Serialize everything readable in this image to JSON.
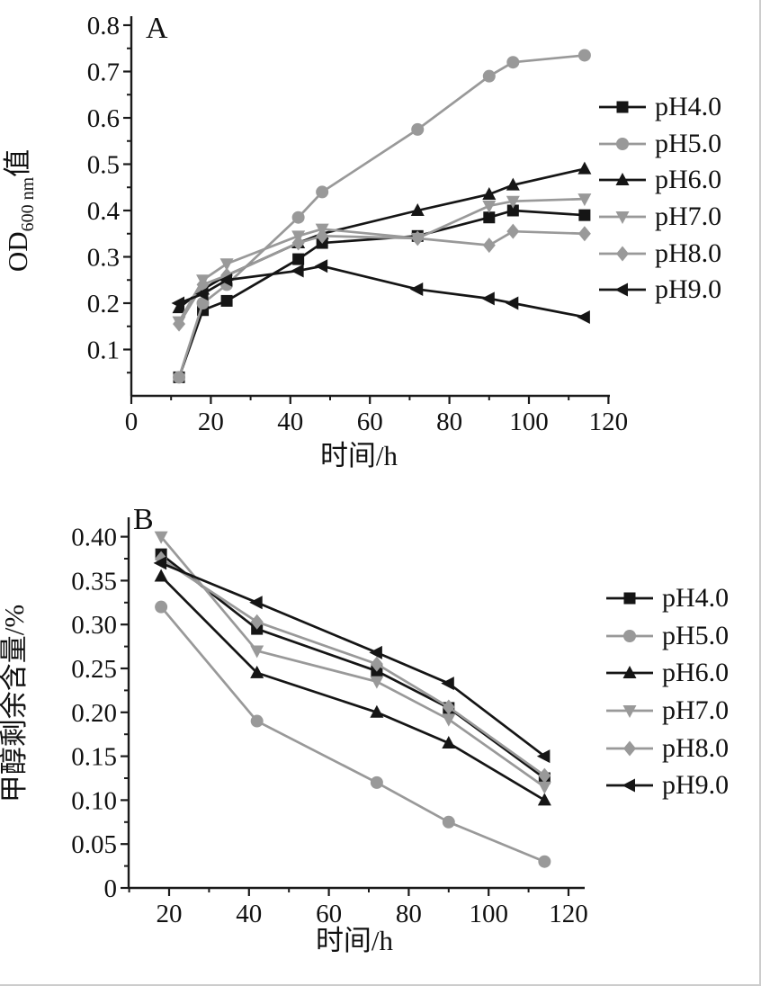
{
  "figure": {
    "background": "#ffffff",
    "border_color": "#cccccc"
  },
  "palette": {
    "axis": "#1a1a1a",
    "text": "#111111",
    "black_series": "#151515",
    "gray_series": "#999999"
  },
  "chart_data": [
    {
      "id": "A",
      "type": "line",
      "panel_label": "A",
      "xlabel": "时间/h",
      "ylabel": {
        "main": "OD",
        "sub": "600 nm",
        "suffix": "值"
      },
      "xlim": [
        0,
        120.4
      ],
      "ylim": [
        0,
        0.8
      ],
      "grid": false,
      "legend_position": "right",
      "x": [
        12,
        18,
        24,
        42,
        48,
        72,
        90,
        96,
        114
      ],
      "x_ticks_major": [
        0,
        20,
        40,
        60,
        80,
        100,
        120
      ],
      "x_tick_labels": [
        "0",
        "20",
        "40",
        "60",
        "80",
        "100",
        "120"
      ],
      "x_ticks_minor": [
        10,
        30,
        50,
        70,
        90,
        110
      ],
      "y_ticks_major": [
        0.1,
        0.2,
        0.3,
        0.4,
        0.5,
        0.6,
        0.7,
        0.8
      ],
      "y_tick_labels": [
        "0.1",
        "0.2",
        "0.3",
        "0.4",
        "0.5",
        "0.6",
        "0.7",
        "0.8"
      ],
      "y_ticks_minor": [
        0.05,
        0.15,
        0.25,
        0.35,
        0.45,
        0.55,
        0.65,
        0.75
      ],
      "series": [
        {
          "name": "pH4.0",
          "marker": "square",
          "color": "#151515",
          "values": [
            0.04,
            0.185,
            0.205,
            0.295,
            0.33,
            0.345,
            0.385,
            0.4,
            0.39
          ]
        },
        {
          "name": "pH5.0",
          "marker": "circle",
          "color": "#999999",
          "values": [
            0.04,
            0.2,
            0.24,
            0.385,
            0.44,
            0.575,
            0.69,
            0.72,
            0.735
          ]
        },
        {
          "name": "pH6.0",
          "marker": "triangle-up",
          "color": "#151515",
          "values": [
            0.19,
            0.23,
            0.26,
            0.33,
            0.35,
            0.4,
            0.435,
            0.455,
            0.49
          ]
        },
        {
          "name": "pH7.0",
          "marker": "triangle-down",
          "color": "#999999",
          "values": [
            0.16,
            0.25,
            0.285,
            0.345,
            0.36,
            0.34,
            0.41,
            0.42,
            0.425
          ]
        },
        {
          "name": "pH8.0",
          "marker": "diamond",
          "color": "#999999",
          "values": [
            0.155,
            0.24,
            0.26,
            0.33,
            0.345,
            0.34,
            0.325,
            0.355,
            0.35
          ]
        },
        {
          "name": "pH9.0",
          "marker": "triangle-left",
          "color": "#151515",
          "values": [
            0.2,
            0.22,
            0.25,
            0.27,
            0.28,
            0.23,
            0.21,
            0.2,
            0.17
          ]
        }
      ]
    },
    {
      "id": "B",
      "type": "line",
      "panel_label": "B",
      "xlabel": "时间/h",
      "ylabel": {
        "main": "甲醇剩余含量/%",
        "sub": "",
        "suffix": ""
      },
      "xlim": [
        9.9,
        124
      ],
      "ylim": [
        0,
        0.42
      ],
      "grid": false,
      "legend_position": "right",
      "x": [
        18,
        42,
        72,
        90,
        114
      ],
      "x_ticks_major": [
        20,
        40,
        60,
        80,
        100,
        120
      ],
      "x_tick_labels": [
        "20",
        "40",
        "60",
        "80",
        "100",
        "120"
      ],
      "x_ticks_minor": [
        10,
        30,
        50,
        70,
        90,
        110
      ],
      "y_ticks_major": [
        0,
        0.05,
        0.1,
        0.15,
        0.2,
        0.25,
        0.3,
        0.35,
        0.4
      ],
      "y_tick_labels": [
        "0",
        "0.05",
        "0.10",
        "0.15",
        "0.20",
        "0.25",
        "0.30",
        "0.35",
        "0.40"
      ],
      "y_ticks_minor": [
        0.025,
        0.075,
        0.125,
        0.175,
        0.225,
        0.275,
        0.325,
        0.375
      ],
      "series": [
        {
          "name": "pH4.0",
          "marker": "square",
          "color": "#151515",
          "values": [
            0.38,
            0.295,
            0.247,
            0.205,
            0.125
          ]
        },
        {
          "name": "pH5.0",
          "marker": "circle",
          "color": "#999999",
          "values": [
            0.32,
            0.19,
            0.12,
            0.075,
            0.03
          ]
        },
        {
          "name": "pH6.0",
          "marker": "triangle-up",
          "color": "#151515",
          "values": [
            0.355,
            0.245,
            0.2,
            0.165,
            0.1
          ]
        },
        {
          "name": "pH7.0",
          "marker": "triangle-down",
          "color": "#999999",
          "values": [
            0.4,
            0.27,
            0.235,
            0.192,
            0.115
          ]
        },
        {
          "name": "pH8.0",
          "marker": "diamond",
          "color": "#999999",
          "values": [
            0.375,
            0.303,
            0.255,
            0.206,
            0.128
          ]
        },
        {
          "name": "pH9.0",
          "marker": "triangle-left",
          "color": "#151515",
          "values": [
            0.37,
            0.325,
            0.268,
            0.233,
            0.15
          ]
        }
      ]
    }
  ]
}
